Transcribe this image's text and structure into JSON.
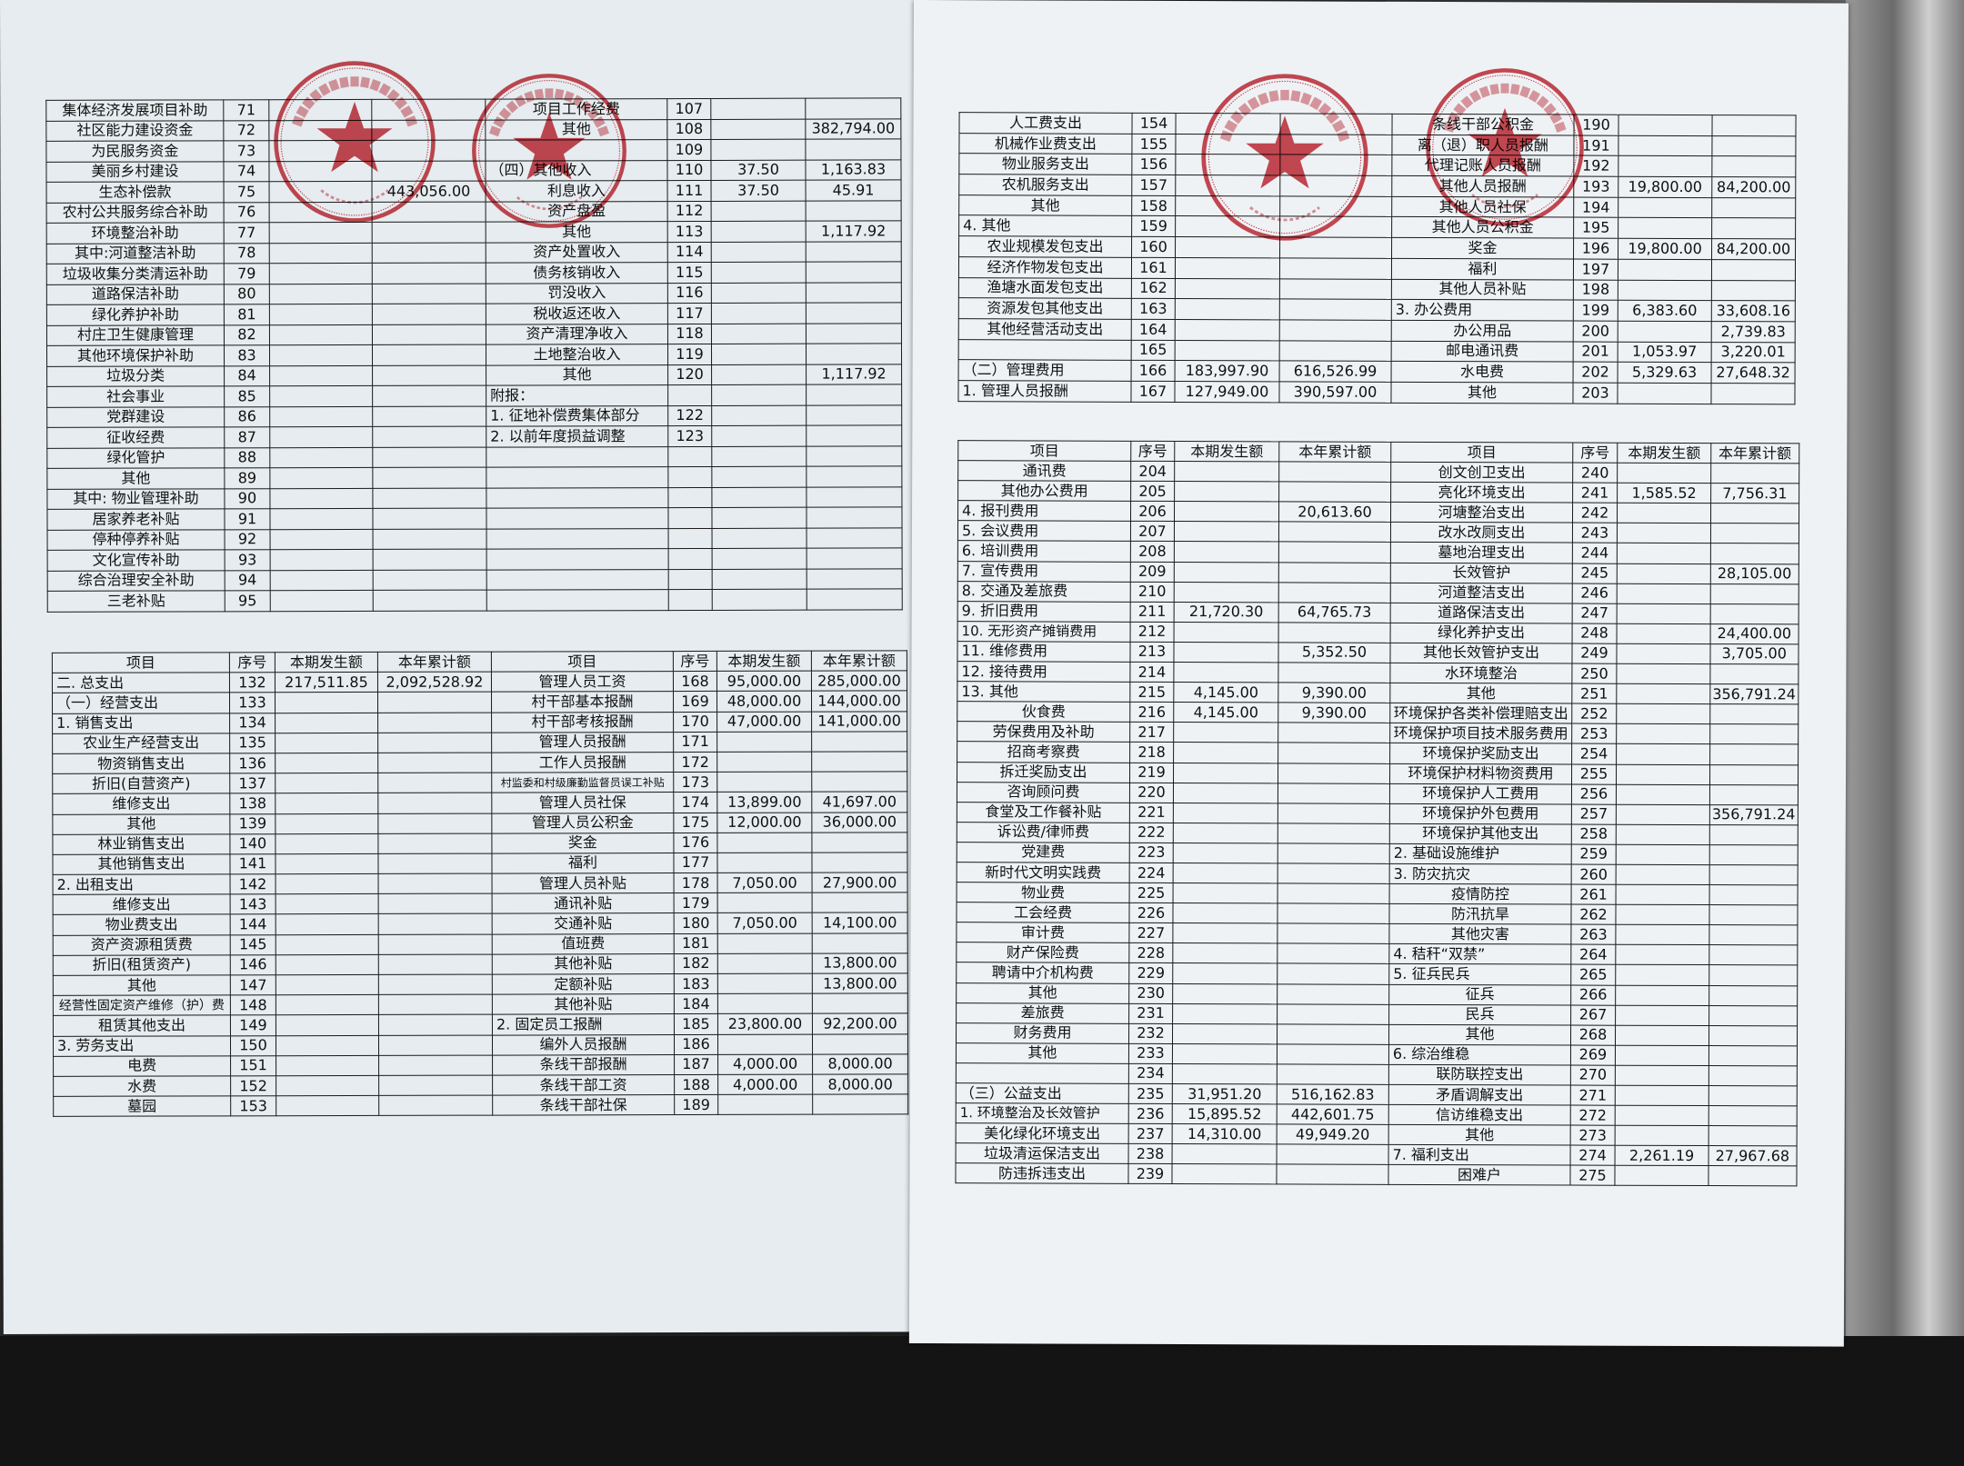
{
  "colors": {
    "stamp": "#c62a35",
    "ink": "#111111",
    "paper": "#e9eef1"
  },
  "stamps": {
    "villagers_committee": {
      "text": "江苏省昆山市张浦镇七桥村民委员会",
      "code": "3205832159557"
    },
    "supervision_committee": {
      "text": "昆山市张浦镇七桥村村务监督委员会",
      "code": "3205830094"
    }
  },
  "headers": [
    "项目",
    "序号",
    "本期发生额",
    "本年累计额",
    "项目",
    "序号",
    "本期发生额",
    "本年累计额"
  ],
  "left_page": {
    "top_table": {
      "left_rows": [
        [
          "集体经济发展项目补助",
          "71",
          "",
          ""
        ],
        [
          "社区能力建设资金",
          "72",
          "",
          ""
        ],
        [
          "为民服务资金",
          "73",
          "",
          ""
        ],
        [
          "美丽乡村建设",
          "74",
          "",
          ""
        ],
        [
          "生态补偿款",
          "75",
          "",
          "443,056.00"
        ],
        [
          "农村公共服务综合补助",
          "76",
          "",
          ""
        ],
        [
          "环境整治补助",
          "77",
          "",
          ""
        ],
        [
          "其中:河道整洁补助",
          "78",
          "",
          ""
        ],
        [
          "垃圾收集分类清运补助",
          "79",
          "",
          ""
        ],
        [
          "道路保洁补助",
          "80",
          "",
          ""
        ],
        [
          "绿化养护补助",
          "81",
          "",
          ""
        ],
        [
          "村庄卫生健康管理",
          "82",
          "",
          ""
        ],
        [
          "其他环境保护补助",
          "83",
          "",
          ""
        ],
        [
          "垃圾分类",
          "84",
          "",
          ""
        ],
        [
          "社会事业",
          "85",
          "",
          ""
        ],
        [
          "党群建设",
          "86",
          "",
          ""
        ],
        [
          "征收经费",
          "87",
          "",
          ""
        ],
        [
          "绿化管护",
          "88",
          "",
          ""
        ],
        [
          "其他",
          "89",
          "",
          ""
        ],
        [
          "其中: 物业管理补助",
          "90",
          "",
          ""
        ],
        [
          "居家养老补贴",
          "91",
          "",
          ""
        ],
        [
          "停种停养补贴",
          "92",
          "",
          ""
        ],
        [
          "文化宣传补助",
          "93",
          "",
          ""
        ],
        [
          "综合治理安全补助",
          "94",
          "",
          ""
        ],
        [
          "三老补贴",
          "95",
          "",
          ""
        ]
      ],
      "right_rows": [
        [
          "项目工作经费",
          "107",
          "",
          ""
        ],
        [
          "其他",
          "108",
          "",
          "382,794.00"
        ],
        [
          "",
          "109",
          "",
          ""
        ],
        [
          "（四）其他收入",
          "110",
          "37.50",
          "1,163.83"
        ],
        [
          "利息收入",
          "111",
          "37.50",
          "45.91"
        ],
        [
          "资产盘盈",
          "112",
          "",
          ""
        ],
        [
          "其他",
          "113",
          "",
          "1,117.92"
        ],
        [
          "资产处置收入",
          "114",
          "",
          ""
        ],
        [
          "债务核销收入",
          "115",
          "",
          ""
        ],
        [
          "罚没收入",
          "116",
          "",
          ""
        ],
        [
          "税收返还收入",
          "117",
          "",
          ""
        ],
        [
          "资产清理净收入",
          "118",
          "",
          ""
        ],
        [
          "土地整治收入",
          "119",
          "",
          ""
        ],
        [
          "其他",
          "120",
          "",
          "1,117.92"
        ],
        [
          "附报：",
          "",
          "",
          ""
        ],
        [
          "1. 征地补偿费集体部分",
          "122",
          "",
          ""
        ],
        [
          "2. 以前年度损益调整",
          "123",
          "",
          ""
        ],
        [
          "",
          "",
          "",
          ""
        ],
        [
          "",
          "",
          "",
          ""
        ],
        [
          "",
          "",
          "",
          ""
        ],
        [
          "",
          "",
          "",
          ""
        ],
        [
          "",
          "",
          "",
          ""
        ],
        [
          "",
          "",
          "",
          ""
        ],
        [
          "",
          "",
          "",
          ""
        ],
        [
          "",
          "",
          "",
          ""
        ]
      ]
    },
    "bottom_table": {
      "left_rows": [
        [
          "二. 总支出",
          "132",
          "217,511.85",
          "2,092,528.92"
        ],
        [
          "（一）经营支出",
          "133",
          "",
          ""
        ],
        [
          "1. 销售支出",
          "134",
          "",
          ""
        ],
        [
          "农业生产经营支出",
          "135",
          "",
          ""
        ],
        [
          "物资销售支出",
          "136",
          "",
          ""
        ],
        [
          "折旧(自营资产)",
          "137",
          "",
          ""
        ],
        [
          "维修支出",
          "138",
          "",
          ""
        ],
        [
          "其他",
          "139",
          "",
          ""
        ],
        [
          "林业销售支出",
          "140",
          "",
          ""
        ],
        [
          "其他销售支出",
          "141",
          "",
          ""
        ],
        [
          "2. 出租支出",
          "142",
          "",
          ""
        ],
        [
          "维修支出",
          "143",
          "",
          ""
        ],
        [
          "物业费支出",
          "144",
          "",
          ""
        ],
        [
          "资产资源租赁费",
          "145",
          "",
          ""
        ],
        [
          "折旧(租赁资产)",
          "146",
          "",
          ""
        ],
        [
          "其他",
          "147",
          "",
          ""
        ],
        [
          "经营性固定资产维修（护）费",
          "148",
          "",
          ""
        ],
        [
          "租赁其他支出",
          "149",
          "",
          ""
        ],
        [
          "3. 劳务支出",
          "150",
          "",
          ""
        ],
        [
          "电费",
          "151",
          "",
          ""
        ],
        [
          "水费",
          "152",
          "",
          ""
        ],
        [
          "墓园",
          "153",
          "",
          ""
        ]
      ],
      "right_rows": [
        [
          "管理人员工资",
          "168",
          "95,000.00",
          "285,000.00"
        ],
        [
          "村干部基本报酬",
          "169",
          "48,000.00",
          "144,000.00"
        ],
        [
          "村干部考核报酬",
          "170",
          "47,000.00",
          "141,000.00"
        ],
        [
          "管理人员报酬",
          "171",
          "",
          ""
        ],
        [
          "工作人员报酬",
          "172",
          "",
          ""
        ],
        [
          "村监委和村级廉勤监督员误工补贴",
          "173",
          "",
          ""
        ],
        [
          "管理人员社保",
          "174",
          "13,899.00",
          "41,697.00"
        ],
        [
          "管理人员公积金",
          "175",
          "12,000.00",
          "36,000.00"
        ],
        [
          "奖金",
          "176",
          "",
          ""
        ],
        [
          "福利",
          "177",
          "",
          ""
        ],
        [
          "管理人员补贴",
          "178",
          "7,050.00",
          "27,900.00"
        ],
        [
          "通讯补贴",
          "179",
          "",
          ""
        ],
        [
          "交通补贴",
          "180",
          "7,050.00",
          "14,100.00"
        ],
        [
          "值班费",
          "181",
          "",
          ""
        ],
        [
          "其他补贴",
          "182",
          "",
          "13,800.00"
        ],
        [
          "定额补贴",
          "183",
          "",
          "13,800.00"
        ],
        [
          "其他补贴",
          "184",
          "",
          ""
        ],
        [
          "2. 固定员工报酬",
          "185",
          "23,800.00",
          "92,200.00"
        ],
        [
          "编外人员报酬",
          "186",
          "",
          ""
        ],
        [
          "条线干部报酬",
          "187",
          "4,000.00",
          "8,000.00"
        ],
        [
          "条线干部工资",
          "188",
          "4,000.00",
          "8,000.00"
        ],
        [
          "条线干部社保",
          "189",
          "",
          ""
        ]
      ]
    }
  },
  "right_page": {
    "top_table": {
      "left_rows": [
        [
          "人工费支出",
          "154",
          "",
          ""
        ],
        [
          "机械作业费支出",
          "155",
          "",
          ""
        ],
        [
          "物业服务支出",
          "156",
          "",
          ""
        ],
        [
          "农机服务支出",
          "157",
          "",
          ""
        ],
        [
          "其他",
          "158",
          "",
          ""
        ],
        [
          "4. 其他",
          "159",
          "",
          ""
        ],
        [
          "农业规模发包支出",
          "160",
          "",
          ""
        ],
        [
          "经济作物发包支出",
          "161",
          "",
          ""
        ],
        [
          "渔塘水面发包支出",
          "162",
          "",
          ""
        ],
        [
          "资源发包其他支出",
          "163",
          "",
          ""
        ],
        [
          "其他经营活动支出",
          "164",
          "",
          ""
        ],
        [
          "",
          "165",
          "",
          ""
        ],
        [
          "（二）管理费用",
          "166",
          "183,997.90",
          "616,526.99"
        ],
        [
          "1. 管理人员报酬",
          "167",
          "127,949.00",
          "390,597.00"
        ]
      ],
      "right_rows": [
        [
          "条线干部公积金",
          "190",
          "",
          ""
        ],
        [
          "离（退）职人员报酬",
          "191",
          "",
          ""
        ],
        [
          "代理记账人员报酬",
          "192",
          "",
          ""
        ],
        [
          "其他人员报酬",
          "193",
          "19,800.00",
          "84,200.00"
        ],
        [
          "其他人员社保",
          "194",
          "",
          ""
        ],
        [
          "其他人员公积金",
          "195",
          "",
          ""
        ],
        [
          "奖金",
          "196",
          "19,800.00",
          "84,200.00"
        ],
        [
          "福利",
          "197",
          "",
          ""
        ],
        [
          "其他人员补贴",
          "198",
          "",
          ""
        ],
        [
          "3. 办公费用",
          "199",
          "6,383.60",
          "33,608.16"
        ],
        [
          "办公用品",
          "200",
          "",
          "2,739.83"
        ],
        [
          "邮电通讯费",
          "201",
          "1,053.97",
          "3,220.01"
        ],
        [
          "水电费",
          "202",
          "5,329.63",
          "27,648.32"
        ],
        [
          "其他",
          "203",
          "",
          ""
        ]
      ]
    },
    "bottom_table": {
      "left_rows": [
        [
          "通讯费",
          "204",
          "",
          ""
        ],
        [
          "其他办公费用",
          "205",
          "",
          ""
        ],
        [
          "4. 报刊费用",
          "206",
          "",
          "20,613.60"
        ],
        [
          "5. 会议费用",
          "207",
          "",
          ""
        ],
        [
          "6. 培训费用",
          "208",
          "",
          ""
        ],
        [
          "7. 宣传费用",
          "209",
          "",
          ""
        ],
        [
          "8. 交通及差旅费",
          "210",
          "",
          ""
        ],
        [
          "9. 折旧费用",
          "211",
          "21,720.30",
          "64,765.73"
        ],
        [
          "10. 无形资产摊销费用",
          "212",
          "",
          ""
        ],
        [
          "11. 维修费用",
          "213",
          "",
          "5,352.50"
        ],
        [
          "12. 接待费用",
          "214",
          "",
          ""
        ],
        [
          "13. 其他",
          "215",
          "4,145.00",
          "9,390.00"
        ],
        [
          "伙食费",
          "216",
          "4,145.00",
          "9,390.00"
        ],
        [
          "劳保费用及补助",
          "217",
          "",
          ""
        ],
        [
          "招商考察费",
          "218",
          "",
          ""
        ],
        [
          "拆迁奖励支出",
          "219",
          "",
          ""
        ],
        [
          "咨询顾问费",
          "220",
          "",
          ""
        ],
        [
          "食堂及工作餐补贴",
          "221",
          "",
          ""
        ],
        [
          "诉讼费/律师费",
          "222",
          "",
          ""
        ],
        [
          "党建费",
          "223",
          "",
          ""
        ],
        [
          "新时代文明实践费",
          "224",
          "",
          ""
        ],
        [
          "物业费",
          "225",
          "",
          ""
        ],
        [
          "工会经费",
          "226",
          "",
          ""
        ],
        [
          "审计费",
          "227",
          "",
          ""
        ],
        [
          "财产保险费",
          "228",
          "",
          ""
        ],
        [
          "聘请中介机构费",
          "229",
          "",
          ""
        ],
        [
          "其他",
          "230",
          "",
          ""
        ],
        [
          "差旅费",
          "231",
          "",
          ""
        ],
        [
          "财务费用",
          "232",
          "",
          ""
        ],
        [
          "其他",
          "233",
          "",
          ""
        ],
        [
          "",
          "234",
          "",
          ""
        ],
        [
          "（三）公益支出",
          "235",
          "31,951.20",
          "516,162.83"
        ],
        [
          "1. 环境整治及长效管护",
          "236",
          "15,895.52",
          "442,601.75"
        ],
        [
          "美化绿化环境支出",
          "237",
          "14,310.00",
          "49,949.20"
        ],
        [
          "垃圾清运保洁支出",
          "238",
          "",
          ""
        ],
        [
          "防违拆违支出",
          "239",
          "",
          ""
        ]
      ],
      "right_rows": [
        [
          "创文创卫支出",
          "240",
          "",
          ""
        ],
        [
          "亮化环境支出",
          "241",
          "1,585.52",
          "7,756.31"
        ],
        [
          "河塘整治支出",
          "242",
          "",
          ""
        ],
        [
          "改水改厕支出",
          "243",
          "",
          ""
        ],
        [
          "墓地治理支出",
          "244",
          "",
          ""
        ],
        [
          "长效管护",
          "245",
          "",
          "28,105.00"
        ],
        [
          "河道整洁支出",
          "246",
          "",
          ""
        ],
        [
          "道路保洁支出",
          "247",
          "",
          ""
        ],
        [
          "绿化养护支出",
          "248",
          "",
          "24,400.00"
        ],
        [
          "其他长效管护支出",
          "249",
          "",
          "3,705.00"
        ],
        [
          "水环境整治",
          "250",
          "",
          ""
        ],
        [
          "其他",
          "251",
          "",
          "356,791.24"
        ],
        [
          "环境保护各类补偿理赔支出",
          "252",
          "",
          ""
        ],
        [
          "环境保护项目技术服务费用",
          "253",
          "",
          ""
        ],
        [
          "环境保护奖励支出",
          "254",
          "",
          ""
        ],
        [
          "环境保护材料物资费用",
          "255",
          "",
          ""
        ],
        [
          "环境保护人工费用",
          "256",
          "",
          ""
        ],
        [
          "环境保护外包费用",
          "257",
          "",
          "356,791.24"
        ],
        [
          "环境保护其他支出",
          "258",
          "",
          ""
        ],
        [
          "2. 基础设施维护",
          "259",
          "",
          ""
        ],
        [
          "3. 防灾抗灾",
          "260",
          "",
          ""
        ],
        [
          "疫情防控",
          "261",
          "",
          ""
        ],
        [
          "防汛抗旱",
          "262",
          "",
          ""
        ],
        [
          "其他灾害",
          "263",
          "",
          ""
        ],
        [
          "4. 秸秆“双禁”",
          "264",
          "",
          ""
        ],
        [
          "5. 征兵民兵",
          "265",
          "",
          ""
        ],
        [
          "征兵",
          "266",
          "",
          ""
        ],
        [
          "民兵",
          "267",
          "",
          ""
        ],
        [
          "其他",
          "268",
          "",
          ""
        ],
        [
          "6. 综治维稳",
          "269",
          "",
          ""
        ],
        [
          "联防联控支出",
          "270",
          "",
          ""
        ],
        [
          "矛盾调解支出",
          "271",
          "",
          ""
        ],
        [
          "信访维稳支出",
          "272",
          "",
          ""
        ],
        [
          "其他",
          "273",
          "",
          ""
        ],
        [
          "7. 福利支出",
          "274",
          "2,261.19",
          "27,967.68"
        ],
        [
          "困难户",
          "275",
          "",
          ""
        ]
      ]
    }
  }
}
